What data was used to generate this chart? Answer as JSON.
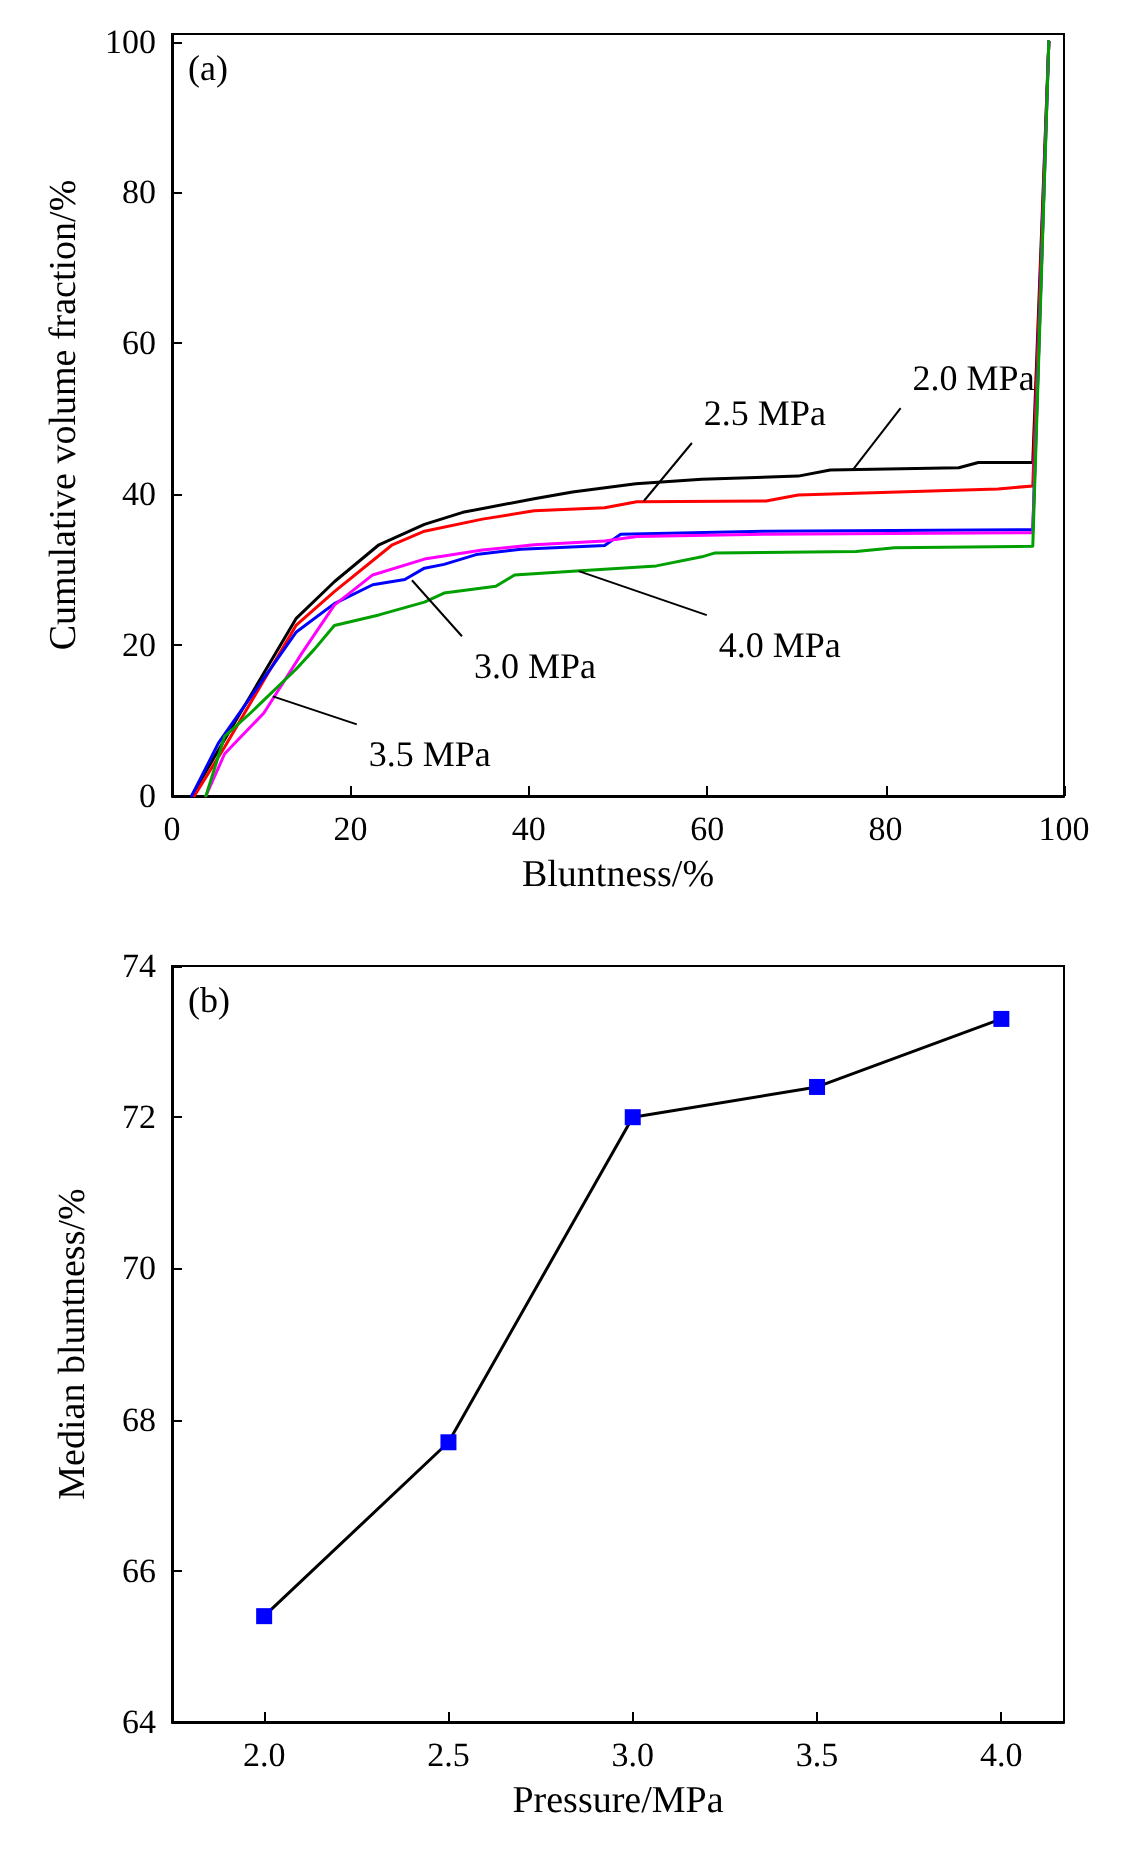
{
  "chart_data": [
    {
      "type": "line",
      "xlabel": "Bluntness/%",
      "ylabel": "Cumulative volume fraction/%",
      "xlim": [
        0,
        100
      ],
      "ylim": [
        0,
        101
      ],
      "xticks": [
        0,
        20,
        40,
        60,
        80,
        100
      ],
      "yticks": [
        0,
        20,
        40,
        60,
        80,
        100
      ],
      "grid": false,
      "marker": "none",
      "line_style": "solid",
      "series": [
        {
          "color": "#000000",
          "x": [
            2.2,
            5.9,
            13.9,
            18.2,
            23.2,
            28.3,
            32.6,
            40.6,
            44.9,
            52,
            59.4,
            70.2,
            73.8,
            88.2,
            90.4,
            96.5,
            98.3
          ],
          "values": [
            0,
            7.5,
            23.5,
            28.4,
            33.3,
            36,
            37.6,
            39.4,
            40.3,
            41.4,
            42,
            42.4,
            43.2,
            43.5,
            44.2,
            44.2,
            100
          ]
        },
        {
          "color": "#ff0000",
          "x": [
            2.5,
            5.9,
            13.9,
            18.2,
            24.7,
            28.3,
            34.8,
            40.6,
            48.5,
            52.1,
            66.6,
            70.2,
            92.6,
            96.5,
            98.3
          ],
          "values": [
            0,
            6.5,
            22.6,
            27.1,
            33.3,
            35.1,
            36.7,
            37.8,
            38.2,
            39,
            39.1,
            39.9,
            40.7,
            41.1,
            100
          ]
        },
        {
          "color": "#0000ff",
          "x": [
            2.2,
            5.2,
            13.9,
            18.2,
            22.5,
            26.1,
            28.3,
            30.5,
            34.1,
            39.1,
            48.5,
            50.3,
            66.6,
            96.5,
            98.3
          ],
          "values": [
            0,
            7,
            21.7,
            25.5,
            28,
            28.7,
            30.2,
            30.7,
            32,
            32.7,
            33.2,
            34.7,
            35.1,
            35.3,
            100
          ]
        },
        {
          "color": "#ff00ff",
          "x": [
            3.8,
            5.9,
            10.3,
            14.6,
            18.2,
            22.5,
            28.3,
            34.8,
            40.6,
            48.5,
            52.1,
            66.6,
            96.5,
            98.3
          ],
          "values": [
            0,
            5.6,
            11,
            19,
            25.3,
            29.3,
            31.4,
            32.6,
            33.3,
            33.8,
            34.4,
            34.7,
            34.9,
            100
          ]
        },
        {
          "color": "#00a000",
          "x": [
            3.8,
            5.9,
            8.8,
            13.9,
            16,
            18.2,
            23.2,
            28.3,
            30.5,
            36.3,
            38.4,
            44.9,
            54.3,
            59.4,
            60.8,
            76.7,
            81,
            96.5,
            98.3
          ],
          "values": [
            0,
            7.9,
            11,
            16.8,
            19.5,
            22.6,
            24,
            25.7,
            26.9,
            27.8,
            29.3,
            29.8,
            30.5,
            31.7,
            32.2,
            32.4,
            32.9,
            33.1,
            100
          ]
        }
      ],
      "annotations": [
        "(a)",
        {
          "text": "2.0 MPa",
          "x": 76.3,
          "y": 43.2
        },
        {
          "text": "2.5 MPa",
          "x": 52.9,
          "y": 39.1
        },
        {
          "text": "3.0 MPa",
          "x": 26.9,
          "y": 28.6
        },
        {
          "text": "3.5 MPa",
          "x": 11.3,
          "y": 13.2
        },
        {
          "text": "4.0 MPa",
          "x": 45.6,
          "y": 29.8
        }
      ]
    },
    {
      "type": "line",
      "xlabel": "Pressure/MPa",
      "ylabel": "Median bluntness/%",
      "xlim": [
        1.75,
        4.17
      ],
      "ylim": [
        64,
        74
      ],
      "xticks": [
        {
          "value": 2,
          "label": "2.0"
        },
        {
          "value": 2.5,
          "label": "2.5"
        },
        {
          "value": 3,
          "label": "3.0"
        },
        {
          "value": 3.5,
          "label": "3.5"
        },
        {
          "value": 4,
          "label": "4.0"
        }
      ],
      "yticks": [
        64,
        66,
        68,
        70,
        72,
        74
      ],
      "grid": false,
      "marker": "square",
      "line_style": "solid",
      "series": [
        {
          "color": "#0000ff",
          "x": [
            2,
            2.5,
            3,
            3.5,
            4
          ],
          "values": [
            65.4,
            67.7,
            72.0,
            72.4,
            73.3
          ]
        }
      ],
      "annotations": [
        "(b)"
      ]
    }
  ]
}
